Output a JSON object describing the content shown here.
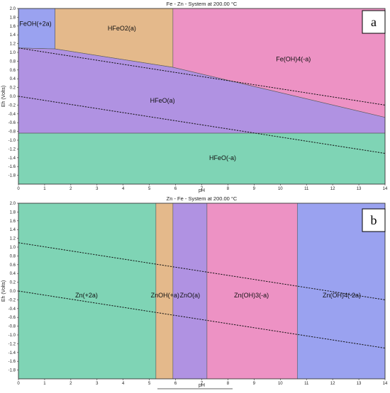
{
  "figure": {
    "decorative_bar_color": "#666666"
  },
  "charts": [
    {
      "id": "a",
      "badge": "a",
      "title": "Fe - Zn - System at 200.00 °C",
      "xlabel": "pH",
      "ylabel": "Eh (Volts)",
      "xlim": [
        0,
        14
      ],
      "ylim": [
        -2.0,
        2.0
      ],
      "xticks": [
        "0",
        "1",
        "2",
        "3",
        "4",
        "5",
        "6",
        "7",
        "8",
        "9",
        "10",
        "11",
        "12",
        "13",
        "14"
      ],
      "yticks": [
        "2.0",
        "1.8",
        "1.6",
        "1.4",
        "1.2",
        "1.0",
        "0.8",
        "0.6",
        "0.4",
        "0.2",
        "0.0",
        "-0.2",
        "-0.4",
        "-0.6",
        "-0.8",
        "-1.0",
        "-1.2",
        "-1.4",
        "-1.6",
        "-1.8"
      ],
      "regions": [
        {
          "name": "FeOH(+2a)",
          "color": "#9aa2f0",
          "label_at": [
            0.65,
            1.65
          ],
          "polygon": [
            [
              0,
              2
            ],
            [
              1.4,
              2
            ],
            [
              1.4,
              1.08
            ],
            [
              0,
              1.1
            ]
          ]
        },
        {
          "name": "HFeO2(a)",
          "color": "#e4b98b",
          "label_at": [
            3.95,
            1.55
          ],
          "polygon": [
            [
              1.4,
              2
            ],
            [
              5.9,
              2
            ],
            [
              5.9,
              0.66
            ],
            [
              1.4,
              1.08
            ]
          ]
        },
        {
          "name": "Fe(OH)4(-a)",
          "color": "#ed92c4",
          "label_at": [
            10.5,
            0.85
          ],
          "polygon": [
            [
              5.9,
              2
            ],
            [
              14,
              2
            ],
            [
              14,
              -0.48
            ],
            [
              5.9,
              0.66
            ]
          ]
        },
        {
          "name": "HFeO(a)",
          "color": "#b092e2",
          "label_at": [
            5.5,
            -0.1
          ],
          "polygon": [
            [
              0,
              1.1
            ],
            [
              1.4,
              1.08
            ],
            [
              5.9,
              0.66
            ],
            [
              14,
              -0.48
            ],
            [
              14,
              -0.84
            ],
            [
              0,
              -0.84
            ]
          ]
        },
        {
          "name": "HFeO(-a)",
          "color": "#7fd4b5",
          "label_at": [
            7.8,
            -1.4
          ],
          "polygon": [
            [
              0,
              -0.84
            ],
            [
              14,
              -0.84
            ],
            [
              14,
              -2
            ],
            [
              0,
              -2
            ]
          ]
        }
      ],
      "dashed_lines": [
        {
          "name": "water-upper-line",
          "points": [
            [
              0,
              1.1
            ],
            [
              14,
              -0.2
            ]
          ]
        },
        {
          "name": "water-lower-line",
          "points": [
            [
              0,
              0.0
            ],
            [
              14,
              -1.3
            ]
          ]
        }
      ]
    },
    {
      "id": "b",
      "badge": "b",
      "title": "Zn - Fe - System at 200.00 °C",
      "xlabel": "pH",
      "ylabel": "Eh (Volts)",
      "xlim": [
        0,
        14
      ],
      "ylim": [
        -2.0,
        2.0
      ],
      "xticks": [
        "0",
        "1",
        "2",
        "3",
        "4",
        "5",
        "6",
        "7",
        "8",
        "9",
        "10",
        "11",
        "12",
        "13",
        "14"
      ],
      "yticks": [
        "2.0",
        "1.8",
        "1.6",
        "1.4",
        "1.2",
        "1.0",
        "0.8",
        "0.6",
        "0.4",
        "0.2",
        "0.0",
        "-0.2",
        "-0.4",
        "-0.6",
        "-0.8",
        "-1.0",
        "-1.2",
        "-1.4",
        "-1.6",
        "-1.8"
      ],
      "regions": [
        {
          "name": "Zn(+2a)",
          "color": "#7fd4b5",
          "label_at": [
            2.6,
            -0.1
          ],
          "polygon": [
            [
              0,
              2
            ],
            [
              5.25,
              2
            ],
            [
              5.25,
              -2
            ],
            [
              0,
              -2
            ]
          ]
        },
        {
          "name": "ZnOH(+a)",
          "color": "#e4b98b",
          "label_at": [
            5.6,
            -0.1
          ],
          "polygon": [
            [
              5.25,
              2
            ],
            [
              5.9,
              2
            ],
            [
              5.9,
              -2
            ],
            [
              5.25,
              -2
            ]
          ]
        },
        {
          "name": "ZnO(a)",
          "color": "#b092e2",
          "label_at": [
            6.55,
            -0.1
          ],
          "polygon": [
            [
              5.9,
              2
            ],
            [
              7.2,
              2
            ],
            [
              7.2,
              -2
            ],
            [
              5.9,
              -2
            ]
          ]
        },
        {
          "name": "Zn(OH)3(-a)",
          "color": "#ed92c4",
          "label_at": [
            8.9,
            -0.1
          ],
          "polygon": [
            [
              7.2,
              2
            ],
            [
              10.65,
              2
            ],
            [
              10.65,
              -2
            ],
            [
              7.2,
              -2
            ]
          ]
        },
        {
          "name": "Zn(OH)4(-2a)",
          "color": "#9aa2f0",
          "label_at": [
            12.35,
            -0.1
          ],
          "polygon": [
            [
              10.65,
              2
            ],
            [
              14,
              2
            ],
            [
              14,
              -2
            ],
            [
              10.65,
              -2
            ]
          ]
        }
      ],
      "dashed_lines": [
        {
          "name": "water-upper-line",
          "points": [
            [
              0,
              1.1
            ],
            [
              14,
              -0.2
            ]
          ]
        },
        {
          "name": "water-lower-line",
          "points": [
            [
              0,
              0.0
            ],
            [
              14,
              -1.3
            ]
          ]
        }
      ]
    }
  ]
}
